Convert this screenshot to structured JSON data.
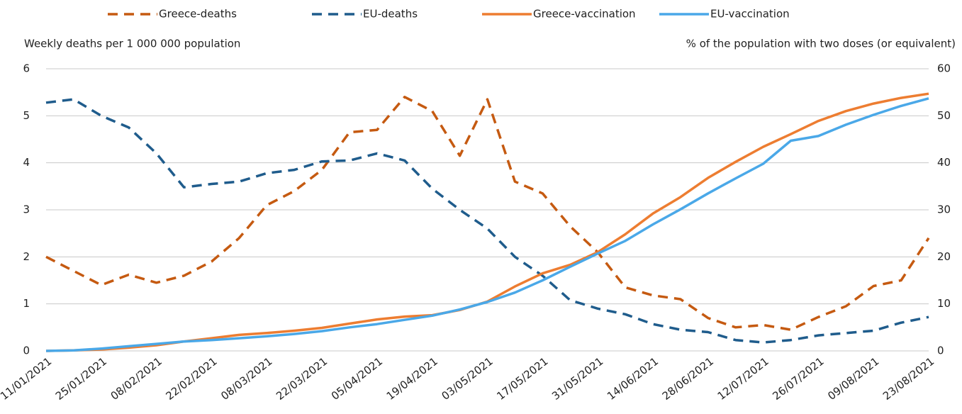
{
  "chart_data": {
    "type": "line",
    "y_label": "Weekly deaths per 1 000 000 population",
    "y2_label": "% of the population with two doses (or equivalent)",
    "categories": [
      "11/01/2021",
      null,
      "25/01/2021",
      null,
      "08/02/2021",
      null,
      "22/02/2021",
      null,
      "08/03/2021",
      null,
      "22/03/2021",
      null,
      "05/04/2021",
      null,
      "19/04/2021",
      null,
      "03/05/2021",
      null,
      "17/05/2021",
      null,
      "31/05/2021",
      null,
      "14/06/2021",
      null,
      "28/06/2021",
      null,
      "12/07/2021",
      null,
      "26/07/2021",
      null,
      "09/08/2021",
      null,
      "23/08/2021"
    ],
    "series": [
      {
        "name": "Greece-deaths",
        "color": "#c55a11",
        "dashed": true,
        "axis": "y",
        "values": [
          2.0,
          1.7,
          1.4,
          1.62,
          1.45,
          1.6,
          1.9,
          2.4,
          3.1,
          3.4,
          3.85,
          4.65,
          4.7,
          5.4,
          5.1,
          4.15,
          5.35,
          3.6,
          3.35,
          2.65,
          2.1,
          1.35,
          1.18,
          1.1,
          0.7,
          0.5,
          0.55,
          0.45,
          0.72,
          0.95,
          1.38,
          1.5,
          2.4
        ]
      },
      {
        "name": "EU-deaths",
        "color": "#1f5c8c",
        "dashed": true,
        "axis": "y",
        "values": [
          5.28,
          5.35,
          5.0,
          4.75,
          4.2,
          3.48,
          3.55,
          3.6,
          3.78,
          3.85,
          4.03,
          4.05,
          4.2,
          4.05,
          3.45,
          3.0,
          2.6,
          2.0,
          1.6,
          1.08,
          0.9,
          0.78,
          0.57,
          0.45,
          0.4,
          0.23,
          0.18,
          0.23,
          0.33,
          0.38,
          0.43,
          0.6,
          0.72
        ]
      },
      {
        "name": "Greece-vaccination",
        "color": "#ed7d31",
        "dashed": false,
        "axis": "y2",
        "values": [
          0,
          0.1,
          0.3,
          0.7,
          1.2,
          2.0,
          2.7,
          3.4,
          3.8,
          4.3,
          4.9,
          5.8,
          6.7,
          7.3,
          7.6,
          8.7,
          10.5,
          13.7,
          16.5,
          18.3,
          21,
          24.8,
          29.2,
          32.7,
          36.8,
          40.2,
          43.4,
          46.1,
          48.9,
          51,
          52.6,
          53.8,
          54.7
        ]
      },
      {
        "name": "EU-vaccination",
        "color": "#4aa8e8",
        "dashed": false,
        "axis": "y2",
        "values": [
          0,
          0.1,
          0.5,
          1.0,
          1.5,
          2.0,
          2.3,
          2.7,
          3.1,
          3.6,
          4.2,
          5.0,
          5.7,
          6.6,
          7.5,
          8.8,
          10.4,
          12.4,
          15.0,
          17.9,
          20.7,
          23.4,
          26.9,
          30.1,
          33.5,
          36.7,
          39.8,
          44.7,
          45.7,
          48.1,
          50.2,
          52.1,
          53.7
        ]
      }
    ],
    "ylim": [
      0,
      6
    ],
    "yticks": [
      0,
      1,
      2,
      3,
      4,
      5,
      6
    ],
    "y2lim": [
      0,
      60
    ],
    "y2ticks": [
      0,
      10,
      20,
      30,
      40,
      50,
      60
    ],
    "grid": true,
    "legend": "top"
  }
}
